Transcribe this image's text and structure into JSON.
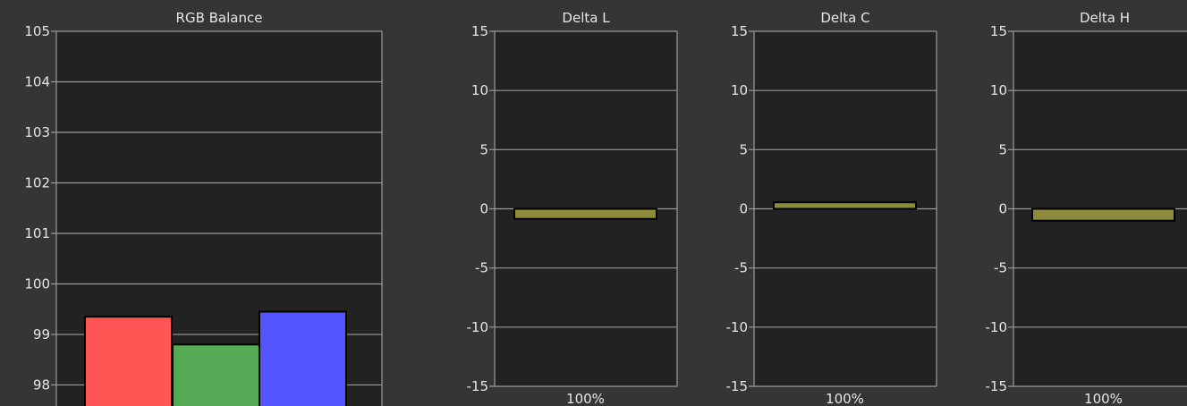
{
  "chart_data": [
    {
      "type": "bar",
      "title": "RGB Balance",
      "categories": [
        "",
        "",
        ""
      ],
      "values": [
        99.35,
        98.8,
        99.45
      ],
      "colors": [
        "#ff5555",
        "#55aa55",
        "#5555ff"
      ],
      "ylim": [
        97.3,
        105
      ],
      "yticks": [
        "105",
        "104",
        "103",
        "102",
        "101",
        "100",
        "99",
        "98"
      ],
      "ytick_values": [
        105,
        104,
        103,
        102,
        101,
        100,
        99,
        98
      ],
      "grid": true
    },
    {
      "type": "bar",
      "title": "Delta L",
      "categories": [
        "100%"
      ],
      "values": [
        -0.85
      ],
      "colors": [
        "#8b8b3a"
      ],
      "ylim": [
        -15,
        15
      ],
      "yticks": [
        "15",
        "10",
        "5",
        "0",
        "-5",
        "-10",
        "-15"
      ],
      "ytick_values": [
        15,
        10,
        5,
        0,
        -5,
        -10,
        -15
      ],
      "grid": true
    },
    {
      "type": "bar",
      "title": "Delta C",
      "categories": [
        "100%"
      ],
      "values": [
        0.55
      ],
      "colors": [
        "#8b8b3a"
      ],
      "ylim": [
        -15,
        15
      ],
      "yticks": [
        "15",
        "10",
        "5",
        "0",
        "-5",
        "-10",
        "-15"
      ],
      "ytick_values": [
        15,
        10,
        5,
        0,
        -5,
        -10,
        -15
      ],
      "grid": true
    },
    {
      "type": "bar",
      "title": "Delta H",
      "categories": [
        "100%"
      ],
      "values": [
        -1.0
      ],
      "colors": [
        "#8b8b3a"
      ],
      "ylim": [
        -15,
        15
      ],
      "yticks": [
        "15",
        "10",
        "5",
        "0",
        "-5",
        "-10",
        "-15"
      ],
      "ytick_values": [
        15,
        10,
        5,
        0,
        -5,
        -10,
        -15
      ],
      "grid": true
    }
  ],
  "style": {
    "background": "#353535",
    "plot_background": "#222222",
    "grid_color": "#9a9a9a",
    "text_color": "#e6e6e6",
    "bar_outline": "#000000"
  }
}
